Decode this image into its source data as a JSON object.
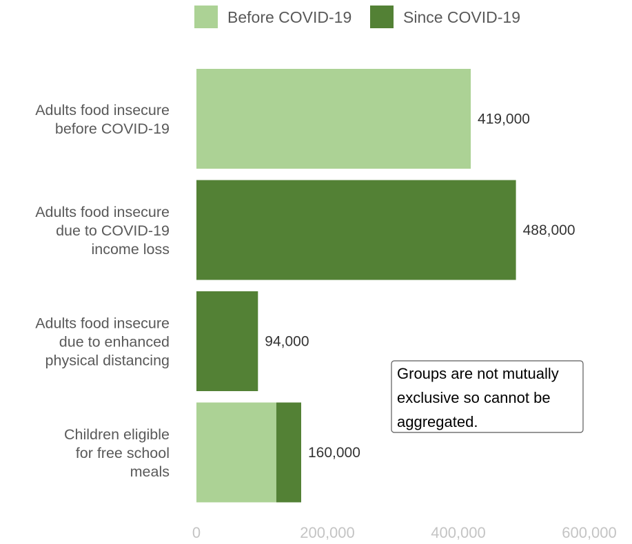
{
  "chart_data": {
    "type": "bar",
    "orientation": "horizontal",
    "stacked": true,
    "categories": [
      [
        "Adults food insecure",
        "before COVID-19"
      ],
      [
        "Adults food insecure",
        "due to COVID-19",
        "income loss"
      ],
      [
        "Adults food insecure",
        "due to enhanced",
        "physical distancing"
      ],
      [
        "Children eligible",
        "for free school",
        "meals"
      ]
    ],
    "series": [
      {
        "name": "Before COVID-19",
        "color": "#acd295",
        "values": [
          419000,
          0,
          0,
          122000
        ]
      },
      {
        "name": "Since COVID-19",
        "color": "#538135",
        "values": [
          0,
          488000,
          94000,
          38000
        ]
      }
    ],
    "data_labels": [
      "419,000",
      "488,000",
      "94,000",
      "160,000"
    ],
    "xlim": [
      0,
      600000
    ],
    "xticks": [
      0,
      200000,
      400000,
      600000
    ],
    "xtick_labels": [
      "0",
      "200,000",
      "400,000",
      "600,000"
    ],
    "grid": false,
    "legend_position": "top",
    "annotation": [
      "Groups are not mutually",
      "exclusive so cannot be",
      "aggregated."
    ],
    "title": "",
    "xlabel": "",
    "ylabel": ""
  }
}
